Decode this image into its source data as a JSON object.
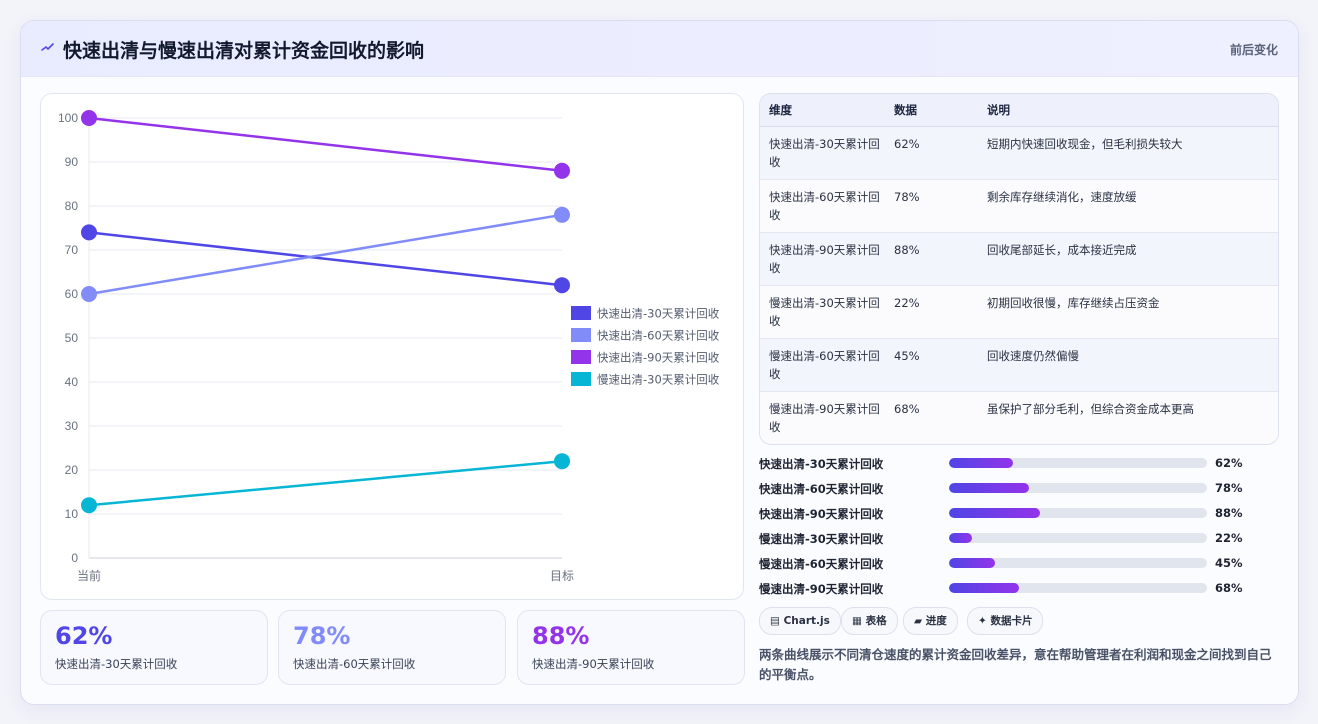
{
  "header": {
    "title": "快速出清与慢速出清对累计资金回收的影响",
    "right_label": "前后变化",
    "icon": "lightning-icon"
  },
  "chart_data": {
    "type": "line",
    "categories": [
      "当前",
      "目标"
    ],
    "ylim": [
      0,
      100
    ],
    "yticks": [
      0,
      10,
      20,
      30,
      40,
      50,
      60,
      70,
      80,
      90,
      100
    ],
    "legend_position": "right",
    "grid": true,
    "series": [
      {
        "name": "快速出清-30天累计回收",
        "values": [
          74,
          62
        ],
        "color": "#4f46e5",
        "show_in_legend": true
      },
      {
        "name": "快速出清-60天累计回收",
        "values": [
          60,
          78
        ],
        "color": "#818cf8",
        "show_in_legend": true
      },
      {
        "name": "快速出清-90天累计回收",
        "values": [
          100,
          88
        ],
        "color": "#9333ea",
        "show_in_legend": true
      },
      {
        "name": "慢速出清-30天累计回收",
        "values": [
          12,
          22
        ],
        "color": "#06b6d4",
        "show_in_legend": true
      }
    ]
  },
  "stats": [
    {
      "value": "62%",
      "label": "快速出清-30天累计回收",
      "color": "#4f46e5"
    },
    {
      "value": "78%",
      "label": "快速出清-60天累计回收",
      "color": "#818cf8"
    },
    {
      "value": "88%",
      "label": "快速出清-90天累计回收",
      "color": "#9333ea"
    }
  ],
  "table": {
    "headers": [
      "维度",
      "数据",
      "说明"
    ],
    "rows": [
      {
        "dim": "快速出清-30天累计回收",
        "val": "62%",
        "desc": "短期内快速回收现金，但毛利损失较大"
      },
      {
        "dim": "快速出清-60天累计回收",
        "val": "78%",
        "desc": "剩余库存继续消化，速度放缓"
      },
      {
        "dim": "快速出清-90天累计回收",
        "val": "88%",
        "desc": "回收尾部延长，成本接近完成"
      },
      {
        "dim": "慢速出清-30天累计回收",
        "val": "22%",
        "desc": "初期回收很慢，库存继续占压资金"
      },
      {
        "dim": "慢速出清-60天累计回收",
        "val": "45%",
        "desc": "回收速度仍然偏慢"
      },
      {
        "dim": "慢速出清-90天累计回收",
        "val": "68%",
        "desc": "虽保护了部分毛利，但综合资金成本更高"
      }
    ]
  },
  "progress": [
    {
      "label": "快速出清-30天累计回收",
      "value": 62,
      "text": "62%"
    },
    {
      "label": "快速出清-60天累计回收",
      "value": 78,
      "text": "78%"
    },
    {
      "label": "快速出清-90天累计回收",
      "value": 88,
      "text": "88%"
    },
    {
      "label": "慢速出清-30天累计回收",
      "value": 22,
      "text": "22%"
    },
    {
      "label": "慢速出清-60天累计回收",
      "value": 45,
      "text": "45%"
    },
    {
      "label": "慢速出清-90天累计回收",
      "value": 68,
      "text": "68%"
    }
  ],
  "tags": [
    "▤ Chart.js",
    "▦ 表格",
    "▰ 进度",
    "✦ 数据卡片"
  ],
  "note": "两条曲线展示不同清仓速度的累计资金回收差异，意在帮助管理者在利润和现金之间找到自己的平衡点。"
}
